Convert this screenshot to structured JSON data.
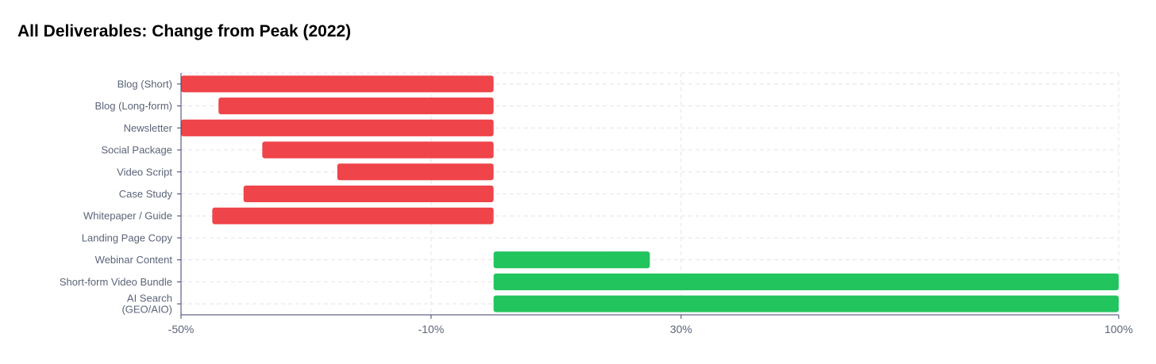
{
  "chart_data": {
    "type": "bar",
    "orientation": "horizontal",
    "title": "All Deliverables: Change from Peak (2022)",
    "xlabel": "",
    "ylabel": "",
    "categories": [
      "Blog (Short)",
      "Blog (Long-form)",
      "Newsletter",
      "Social Package",
      "Video Script",
      "Case Study",
      "Whitepaper / Guide",
      "Landing Page Copy",
      "Webinar Content",
      "Short-form Video Bundle",
      "AI Search (GEO/AIO)"
    ],
    "category_lines": [
      [
        "Blog (Short)"
      ],
      [
        "Blog (Long-form)"
      ],
      [
        "Newsletter"
      ],
      [
        "Social Package"
      ],
      [
        "Video Script"
      ],
      [
        "Case Study"
      ],
      [
        "Whitepaper / Guide"
      ],
      [
        "Landing Page Copy"
      ],
      [
        "Webinar Content"
      ],
      [
        "Short-form Video Bundle"
      ],
      [
        "AI Search",
        "(GEO/AIO)"
      ]
    ],
    "values": [
      -50,
      -44,
      -50,
      -37,
      -25,
      -40,
      -45,
      0,
      25,
      100,
      100
    ],
    "xlim": [
      -50,
      100
    ],
    "xticks": [
      -50,
      -10,
      30,
      100
    ],
    "xtick_labels": [
      "-50%",
      "-10%",
      "30%",
      "100%"
    ],
    "grid": true,
    "legend": "none",
    "colors": {
      "negative": "#ef4449",
      "positive": "#22c45e",
      "grid": "#e3e4ec",
      "axis": "#3d3f6b",
      "label": "#5b6478"
    }
  }
}
